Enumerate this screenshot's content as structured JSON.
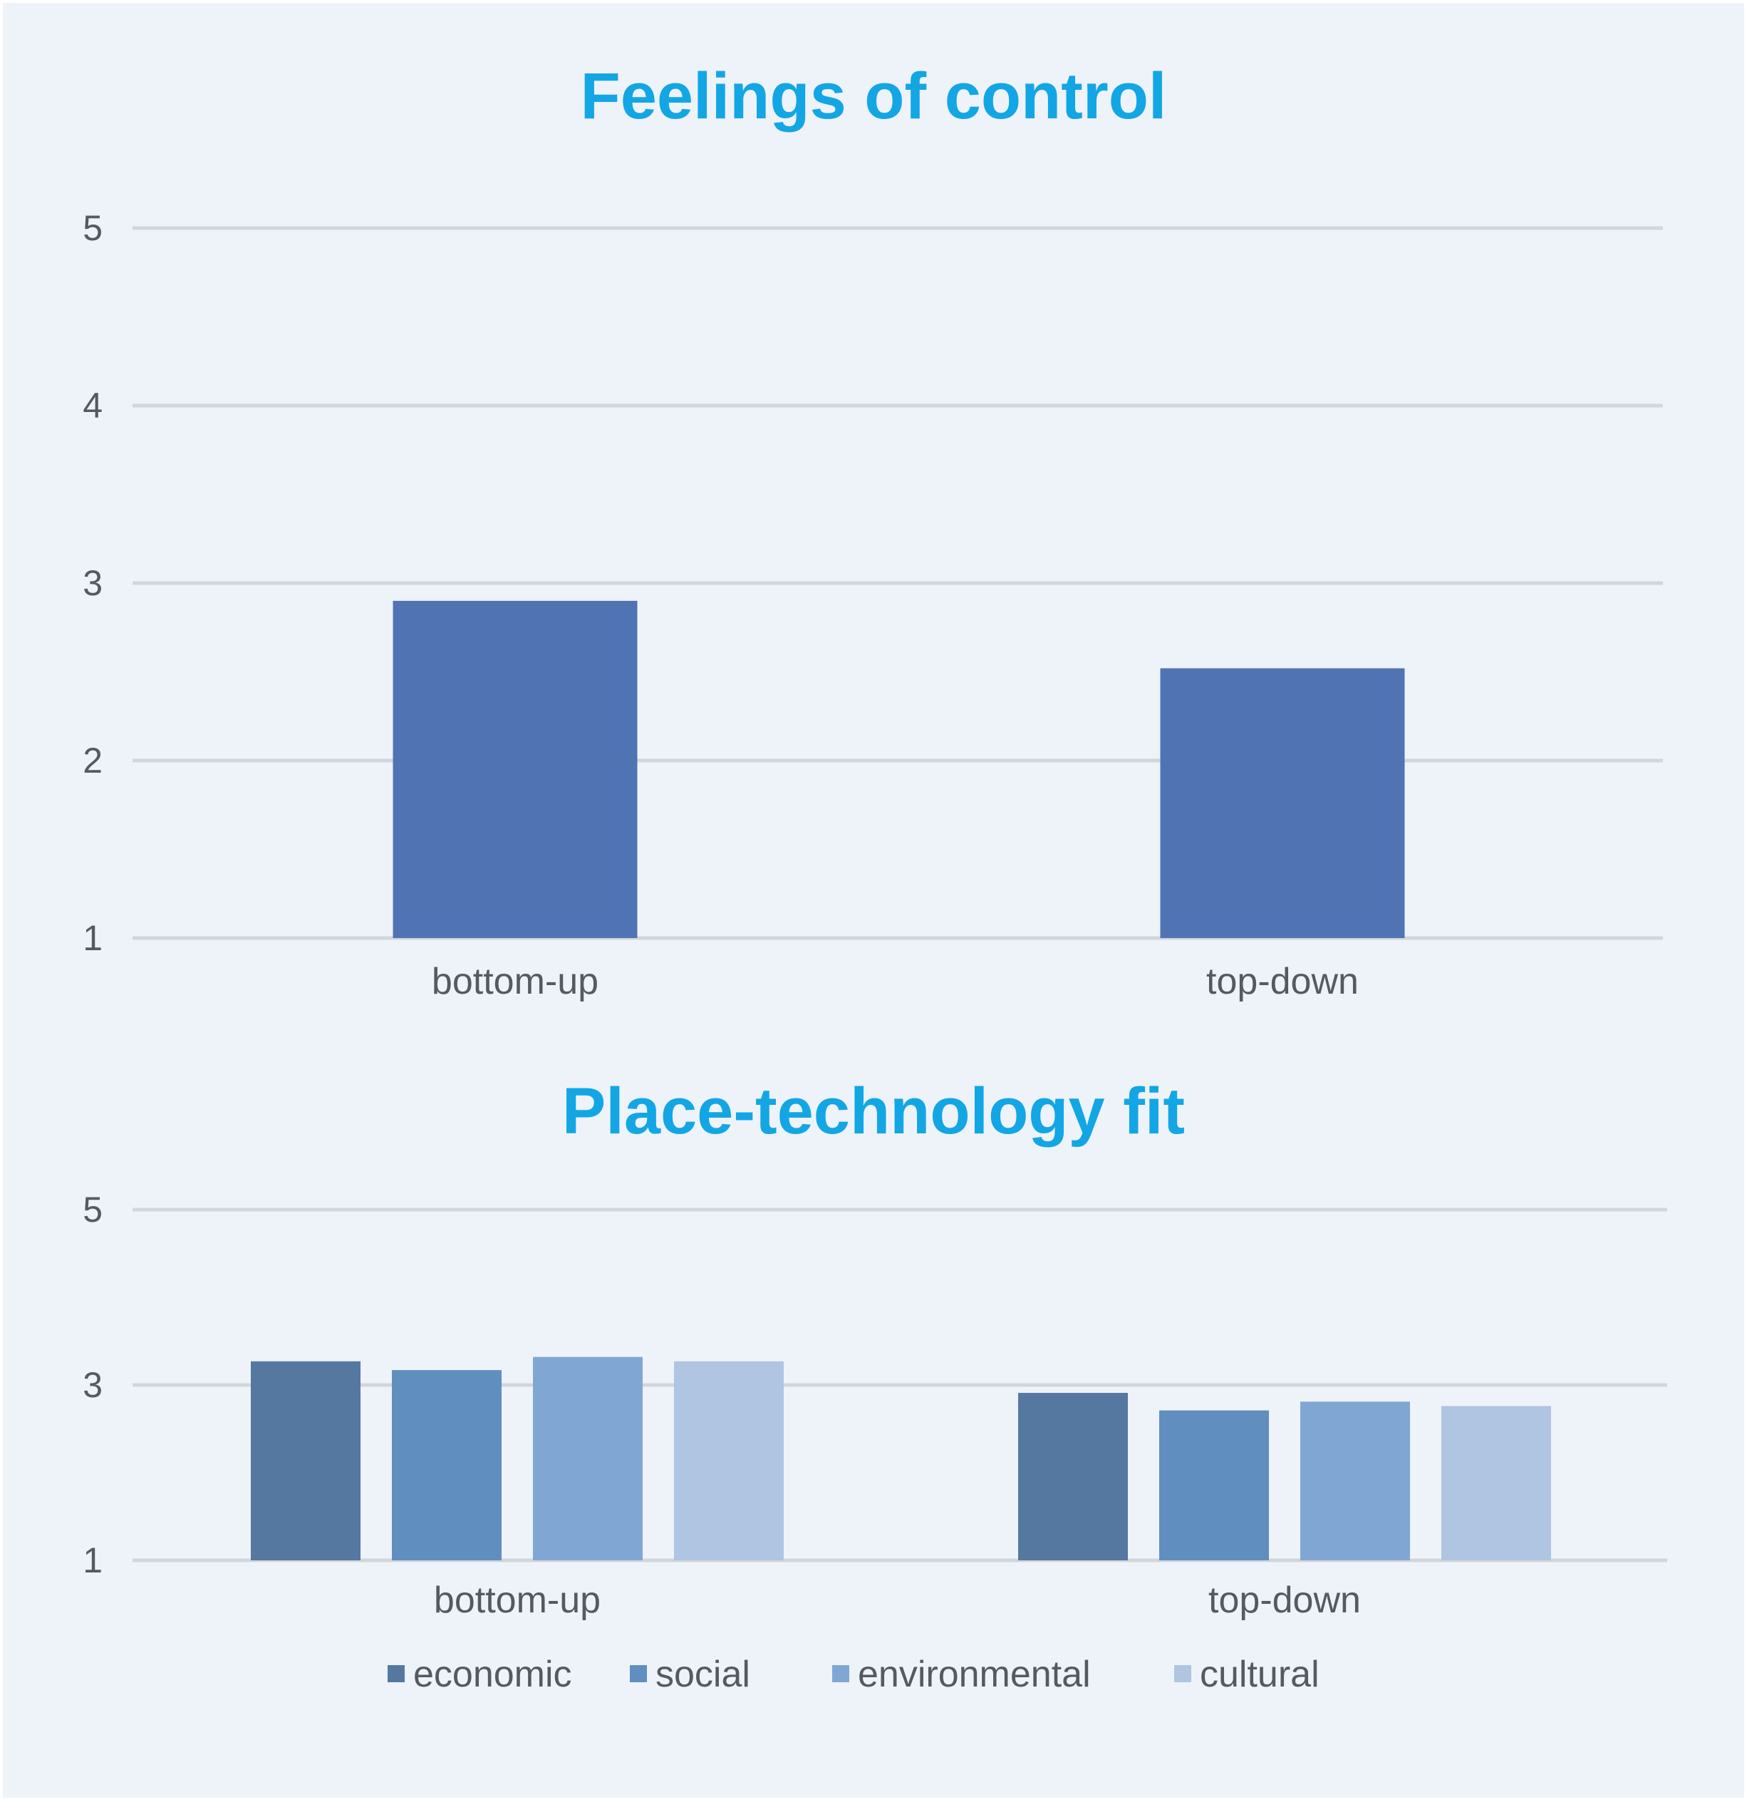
{
  "colors": {
    "title": "#13a6e4",
    "grid": "#d2d6da",
    "text": "#555a60",
    "background": "#eef3fa"
  },
  "chart_data": [
    {
      "type": "bar",
      "title": "Feelings of control",
      "categories": [
        "bottom-up",
        "top-down"
      ],
      "series": [
        {
          "values": [
            2.9,
            2.52
          ],
          "color": "#5073b4"
        }
      ],
      "ylim": [
        1,
        5
      ],
      "yticks": [
        "1",
        "2",
        "3",
        "4",
        "5"
      ],
      "ytick_values": [
        1,
        2,
        3,
        4,
        5
      ],
      "grid": true,
      "legend": "none"
    },
    {
      "type": "bar",
      "title": "Place-technology fit",
      "categories": [
        "bottom-up",
        "top-down"
      ],
      "series": [
        {
          "name": "economic",
          "values": [
            3.27,
            2.91
          ],
          "color": "#5578a1"
        },
        {
          "name": "social",
          "values": [
            3.17,
            2.71
          ],
          "color": "#608fbf"
        },
        {
          "name": "environmental",
          "values": [
            3.32,
            2.81
          ],
          "color": "#80a7d4"
        },
        {
          "name": "cultural",
          "values": [
            3.27,
            2.76
          ],
          "color": "#afc5e1"
        }
      ],
      "ylim": [
        1,
        5
      ],
      "yticks": [
        "1",
        "3",
        "5"
      ],
      "ytick_values": [
        1,
        3,
        5
      ],
      "grid": true,
      "legend": "bottom"
    }
  ]
}
